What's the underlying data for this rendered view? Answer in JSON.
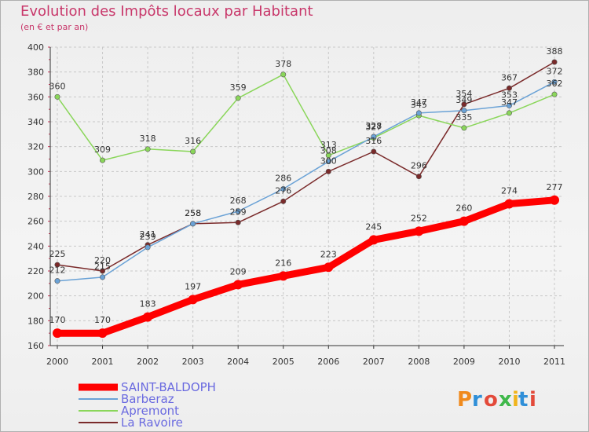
{
  "chart_data": {
    "type": "line",
    "title": "Evolution des Impôts locaux par Habitant",
    "subtitle": "(en € et par an)",
    "x": [
      "2000",
      "2001",
      "2002",
      "2003",
      "2004",
      "2005",
      "2006",
      "2007",
      "2008",
      "2009",
      "2010",
      "2011"
    ],
    "ylim": [
      160,
      400
    ],
    "yticks": [
      160,
      180,
      200,
      220,
      240,
      260,
      280,
      300,
      320,
      340,
      360,
      380,
      400
    ],
    "grid": true,
    "legend": "bottom-left",
    "series": [
      {
        "name": "SAINT-BALDOPH",
        "color": "#ff0000",
        "values": [
          170,
          170,
          183,
          197,
          209,
          216,
          223,
          245,
          252,
          260,
          274,
          277
        ]
      },
      {
        "name": "Barberaz",
        "color": "#6aa2d6",
        "values": [
          212,
          215,
          239,
          258,
          268,
          286,
          308,
          328,
          347,
          349,
          353,
          372
        ]
      },
      {
        "name": "Apremont",
        "color": "#8ad65a",
        "values": [
          360,
          309,
          318,
          316,
          359,
          378,
          313,
          327,
          345,
          335,
          347,
          362
        ]
      },
      {
        "name": "La Ravoire",
        "color": "#7a2a2a",
        "values": [
          225,
          220,
          241,
          258,
          259,
          276,
          300,
          316,
          296,
          354,
          367,
          388
        ]
      }
    ]
  },
  "logo": {
    "text": "Prox",
    "x_letter": "x",
    "tail": "iti"
  }
}
